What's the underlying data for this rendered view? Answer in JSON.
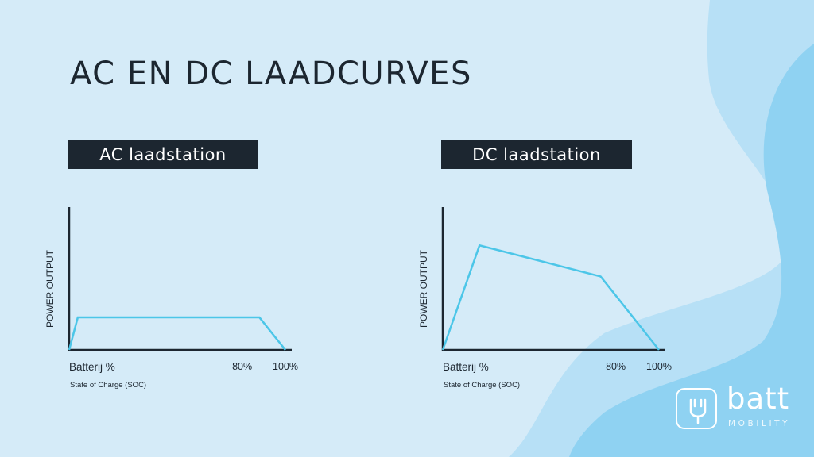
{
  "title": "AC EN DC LAADCURVES",
  "panels": {
    "ac": {
      "label": "AC laadstation"
    },
    "dc": {
      "label": "DC laadstation"
    }
  },
  "logo": {
    "word": "batt",
    "sub": "MOBILITY",
    "icon": "plug-icon"
  },
  "colors": {
    "background": "#d5ebf8",
    "shape_light": "#b7e0f6",
    "shape_mid": "#8fd2f2",
    "panel": "#1c2630",
    "curve": "#4cc6e8",
    "axis": "#1c2630"
  },
  "chart_data": [
    {
      "type": "line",
      "title": "AC laadstation",
      "xlabel": "Batterij %",
      "xlabel_sub": "State of Charge (SOC)",
      "ylabel": "POWER OUTPUT",
      "xlim": [
        0,
        100
      ],
      "ylim": [
        0,
        100
      ],
      "grid": false,
      "x_ticks": [
        {
          "value": 80,
          "label": "80%"
        },
        {
          "value": 100,
          "label": "100%"
        }
      ],
      "series": [
        {
          "x": [
            0,
            4,
            88,
            100
          ],
          "y": [
            0,
            23,
            23,
            0
          ]
        }
      ]
    },
    {
      "type": "line",
      "title": "DC laadstation",
      "xlabel": "Batterij %",
      "xlabel_sub": "State of Charge (SOC)",
      "ylabel": "POWER OUTPUT",
      "xlim": [
        0,
        100
      ],
      "ylim": [
        0,
        100
      ],
      "grid": false,
      "x_ticks": [
        {
          "value": 80,
          "label": "80%"
        },
        {
          "value": 100,
          "label": "100%"
        }
      ],
      "series": [
        {
          "x": [
            0,
            17,
            73,
            100
          ],
          "y": [
            0,
            74,
            52,
            0
          ]
        }
      ]
    }
  ]
}
